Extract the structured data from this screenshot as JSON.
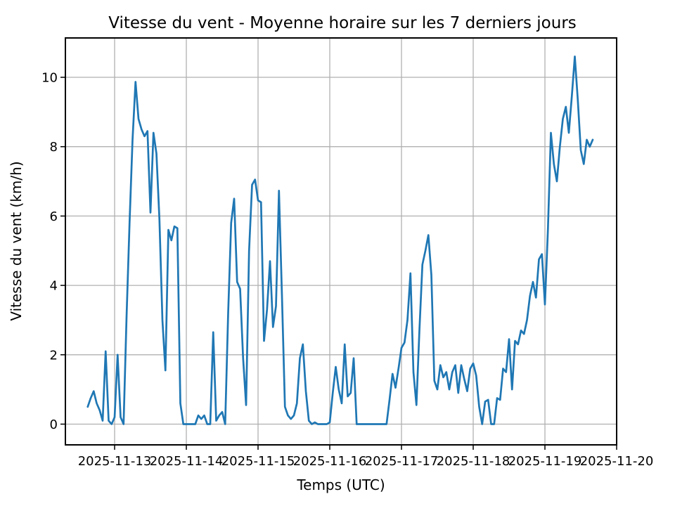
{
  "chart_data": {
    "type": "line",
    "title": "Vitesse du vent - Moyenne horaire sur les 7 derniers jours",
    "xlabel": "Temps (UTC)",
    "ylabel": "Vitesse du vent (km/h)",
    "legend": null,
    "grid": true,
    "grid_color": "#b0b0b0",
    "line_color": "#1f77b4",
    "spine_color": "#000000",
    "x_tick_labels": [
      "2025-11-13",
      "2025-11-14",
      "2025-11-15",
      "2025-11-16",
      "2025-11-17",
      "2025-11-18",
      "2025-11-19",
      "2025-11-20"
    ],
    "y_tick_labels": [
      "0",
      "2",
      "4",
      "6",
      "8",
      "10"
    ],
    "y_ticks": [
      0,
      2,
      4,
      6,
      8,
      10
    ],
    "xlim_hours_from_nov13": [
      -16.5,
      168
    ],
    "ylim": [
      -0.6,
      11.13
    ],
    "points_format": "[day_of_november_2025, hour_utc, wind_speed_km_h]",
    "points": [
      [
        12,
        15,
        0.5
      ],
      [
        12,
        16,
        0.75
      ],
      [
        12,
        17,
        0.95
      ],
      [
        12,
        18,
        0.6
      ],
      [
        12,
        19,
        0.4
      ],
      [
        12,
        20,
        0.1
      ],
      [
        12,
        21,
        2.1
      ],
      [
        12,
        22,
        0.1
      ],
      [
        12,
        23,
        0.0
      ],
      [
        13,
        0,
        0.2
      ],
      [
        13,
        1,
        2.0
      ],
      [
        13,
        2,
        0.2
      ],
      [
        13,
        3,
        0.0
      ],
      [
        13,
        4,
        3.1
      ],
      [
        13,
        5,
        5.8
      ],
      [
        13,
        6,
        8.2
      ],
      [
        13,
        7,
        9.87
      ],
      [
        13,
        8,
        8.8
      ],
      [
        13,
        9,
        8.5
      ],
      [
        13,
        10,
        8.3
      ],
      [
        13,
        11,
        8.45
      ],
      [
        13,
        12,
        6.1
      ],
      [
        13,
        13,
        8.4
      ],
      [
        13,
        14,
        7.8
      ],
      [
        13,
        15,
        5.9
      ],
      [
        13,
        16,
        3.0
      ],
      [
        13,
        17,
        1.55
      ],
      [
        13,
        18,
        5.6
      ],
      [
        13,
        19,
        5.3
      ],
      [
        13,
        20,
        5.7
      ],
      [
        13,
        21,
        5.65
      ],
      [
        13,
        22,
        0.6
      ],
      [
        13,
        23,
        0.0
      ],
      [
        14,
        0,
        0.0
      ],
      [
        14,
        1,
        0.0
      ],
      [
        14,
        2,
        0.0
      ],
      [
        14,
        3,
        0.0
      ],
      [
        14,
        4,
        0.25
      ],
      [
        14,
        5,
        0.15
      ],
      [
        14,
        6,
        0.25
      ],
      [
        14,
        7,
        0.0
      ],
      [
        14,
        8,
        0.0
      ],
      [
        14,
        9,
        2.65
      ],
      [
        14,
        10,
        0.1
      ],
      [
        14,
        11,
        0.25
      ],
      [
        14,
        12,
        0.35
      ],
      [
        14,
        13,
        0.0
      ],
      [
        14,
        14,
        3.2
      ],
      [
        14,
        15,
        5.8
      ],
      [
        14,
        16,
        6.5
      ],
      [
        14,
        17,
        4.1
      ],
      [
        14,
        18,
        3.9
      ],
      [
        14,
        19,
        1.9
      ],
      [
        14,
        20,
        0.55
      ],
      [
        14,
        21,
        5.0
      ],
      [
        14,
        22,
        6.9
      ],
      [
        14,
        23,
        7.05
      ],
      [
        15,
        0,
        6.45
      ],
      [
        15,
        1,
        6.4
      ],
      [
        15,
        2,
        2.4
      ],
      [
        15,
        3,
        3.3
      ],
      [
        15,
        4,
        4.7
      ],
      [
        15,
        5,
        2.8
      ],
      [
        15,
        6,
        3.4
      ],
      [
        15,
        7,
        6.73
      ],
      [
        15,
        8,
        3.7
      ],
      [
        15,
        9,
        0.5
      ],
      [
        15,
        10,
        0.25
      ],
      [
        15,
        11,
        0.15
      ],
      [
        15,
        12,
        0.25
      ],
      [
        15,
        13,
        0.6
      ],
      [
        15,
        14,
        1.9
      ],
      [
        15,
        15,
        2.3
      ],
      [
        15,
        16,
        0.95
      ],
      [
        15,
        17,
        0.1
      ],
      [
        15,
        18,
        0.0
      ],
      [
        15,
        19,
        0.05
      ],
      [
        15,
        20,
        0.0
      ],
      [
        15,
        21,
        0.0
      ],
      [
        15,
        22,
        0.0
      ],
      [
        15,
        23,
        0.0
      ],
      [
        16,
        0,
        0.05
      ],
      [
        16,
        1,
        0.9
      ],
      [
        16,
        2,
        1.65
      ],
      [
        16,
        3,
        1.0
      ],
      [
        16,
        4,
        0.6
      ],
      [
        16,
        5,
        2.3
      ],
      [
        16,
        6,
        0.8
      ],
      [
        16,
        7,
        0.9
      ],
      [
        16,
        8,
        1.9
      ],
      [
        16,
        9,
        0.0
      ],
      [
        16,
        10,
        0.0
      ],
      [
        16,
        11,
        0.0
      ],
      [
        16,
        12,
        0.0
      ],
      [
        16,
        13,
        0.0
      ],
      [
        16,
        14,
        0.0
      ],
      [
        16,
        15,
        0.0
      ],
      [
        16,
        16,
        0.0
      ],
      [
        16,
        17,
        0.0
      ],
      [
        16,
        18,
        0.0
      ],
      [
        16,
        19,
        0.0
      ],
      [
        16,
        20,
        0.7
      ],
      [
        16,
        21,
        1.45
      ],
      [
        16,
        22,
        1.05
      ],
      [
        16,
        23,
        1.6
      ],
      [
        17,
        0,
        2.2
      ],
      [
        17,
        1,
        2.35
      ],
      [
        17,
        2,
        3.0
      ],
      [
        17,
        3,
        4.35
      ],
      [
        17,
        4,
        1.5
      ],
      [
        17,
        5,
        0.55
      ],
      [
        17,
        6,
        2.7
      ],
      [
        17,
        7,
        4.6
      ],
      [
        17,
        8,
        5.0
      ],
      [
        17,
        9,
        5.45
      ],
      [
        17,
        10,
        4.3
      ],
      [
        17,
        11,
        1.25
      ],
      [
        17,
        12,
        1.0
      ],
      [
        17,
        13,
        1.7
      ],
      [
        17,
        14,
        1.35
      ],
      [
        17,
        15,
        1.5
      ],
      [
        17,
        16,
        1.0
      ],
      [
        17,
        17,
        1.5
      ],
      [
        17,
        18,
        1.7
      ],
      [
        17,
        19,
        0.9
      ],
      [
        17,
        20,
        1.7
      ],
      [
        17,
        21,
        1.3
      ],
      [
        17,
        22,
        0.95
      ],
      [
        17,
        23,
        1.6
      ],
      [
        18,
        0,
        1.75
      ],
      [
        18,
        1,
        1.4
      ],
      [
        18,
        2,
        0.5
      ],
      [
        18,
        3,
        0.0
      ],
      [
        18,
        4,
        0.65
      ],
      [
        18,
        5,
        0.7
      ],
      [
        18,
        6,
        0.0
      ],
      [
        18,
        7,
        0.0
      ],
      [
        18,
        8,
        0.75
      ],
      [
        18,
        9,
        0.7
      ],
      [
        18,
        10,
        1.6
      ],
      [
        18,
        11,
        1.5
      ],
      [
        18,
        12,
        2.45
      ],
      [
        18,
        13,
        1.0
      ],
      [
        18,
        14,
        2.4
      ],
      [
        18,
        15,
        2.3
      ],
      [
        18,
        16,
        2.7
      ],
      [
        18,
        17,
        2.6
      ],
      [
        18,
        18,
        3.0
      ],
      [
        18,
        19,
        3.7
      ],
      [
        18,
        20,
        4.1
      ],
      [
        18,
        21,
        3.65
      ],
      [
        18,
        22,
        4.75
      ],
      [
        18,
        23,
        4.9
      ],
      [
        19,
        0,
        3.45
      ],
      [
        19,
        1,
        5.6
      ],
      [
        19,
        2,
        8.4
      ],
      [
        19,
        3,
        7.5
      ],
      [
        19,
        4,
        7.0
      ],
      [
        19,
        5,
        8.0
      ],
      [
        19,
        6,
        8.8
      ],
      [
        19,
        7,
        9.15
      ],
      [
        19,
        8,
        8.4
      ],
      [
        19,
        9,
        9.45
      ],
      [
        19,
        10,
        10.6
      ],
      [
        19,
        11,
        9.35
      ],
      [
        19,
        12,
        7.9
      ],
      [
        19,
        13,
        7.5
      ],
      [
        19,
        14,
        8.2
      ],
      [
        19,
        15,
        8.0
      ],
      [
        19,
        16,
        8.2
      ]
    ]
  }
}
